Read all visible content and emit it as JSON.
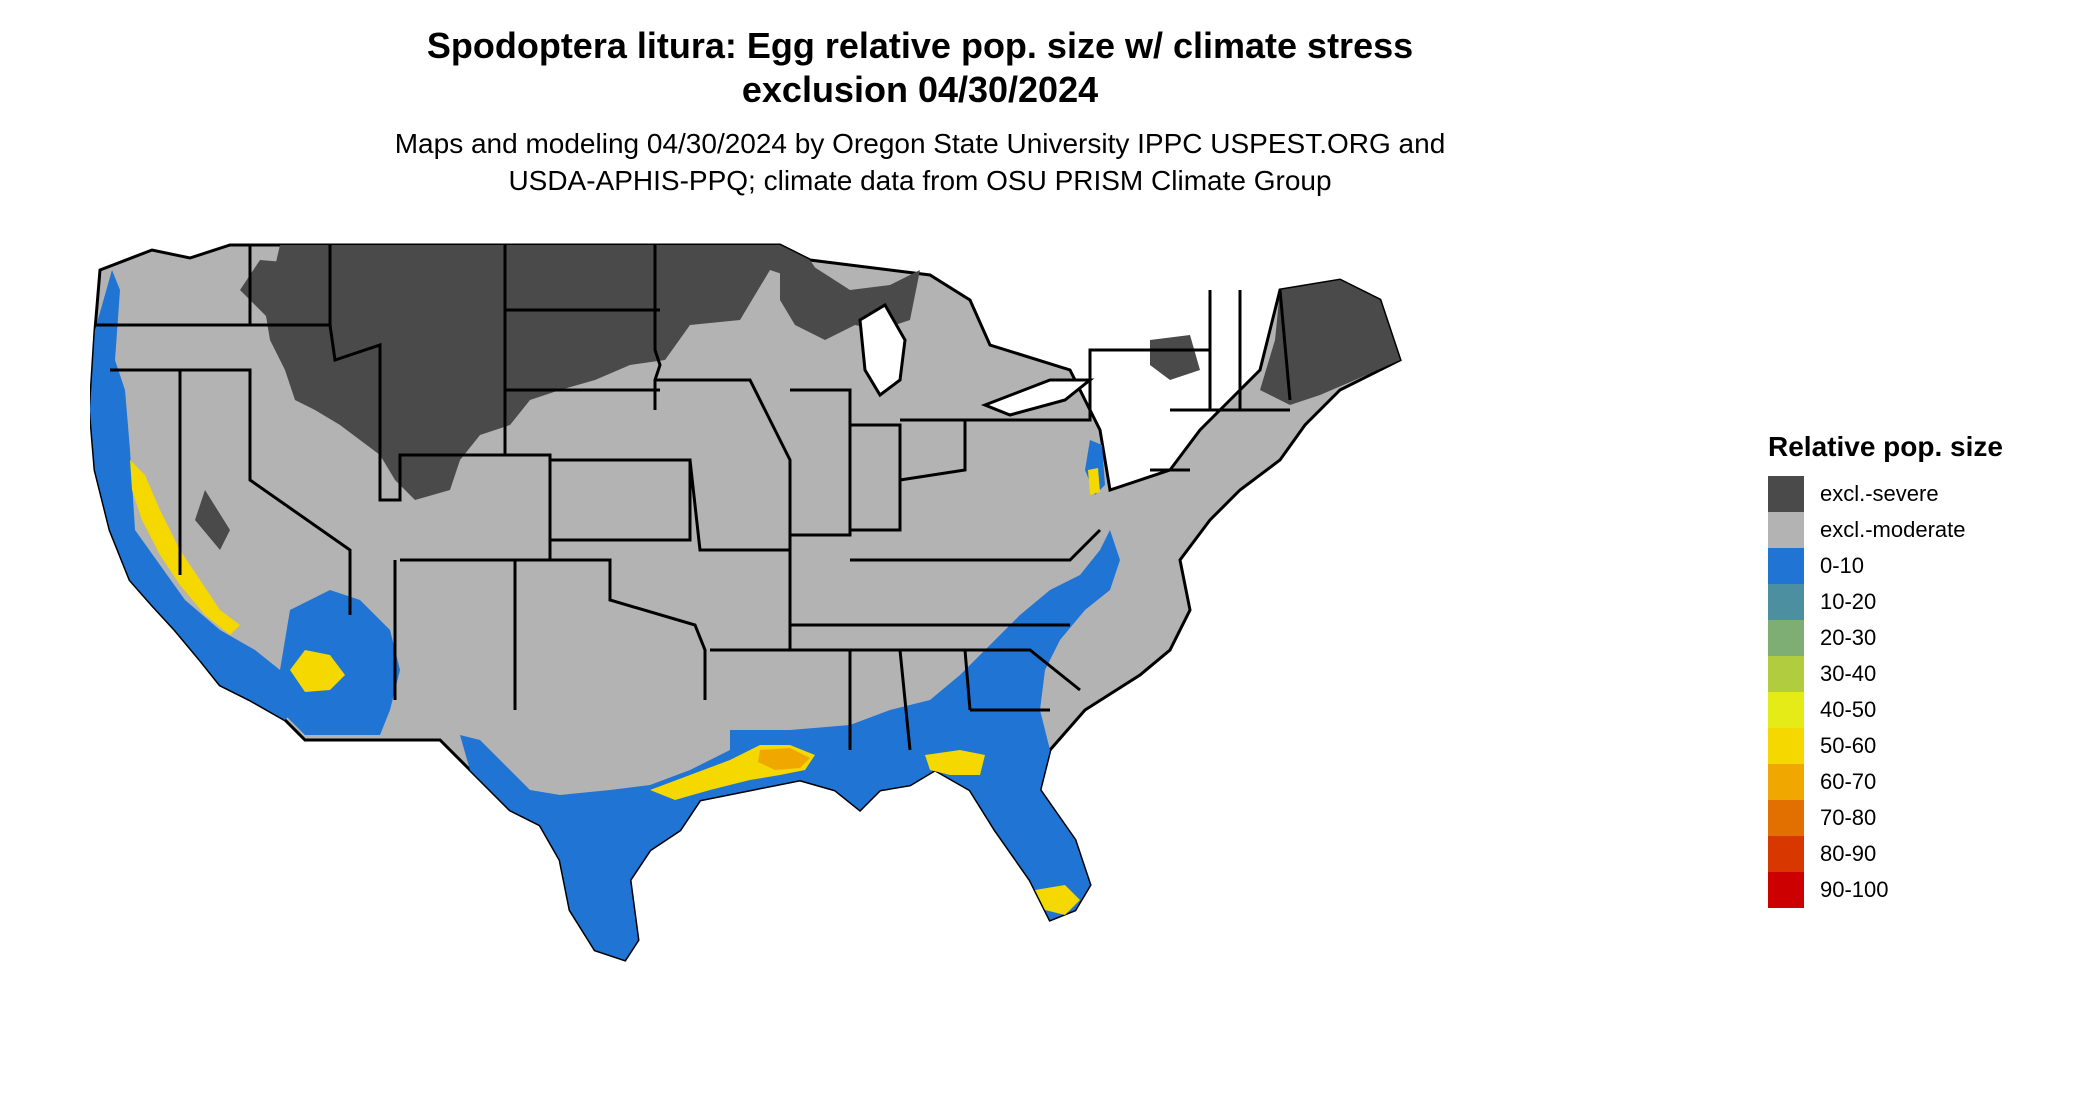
{
  "header": {
    "title_line1": "Spodoptera litura: Egg relative pop. size w/ climate stress",
    "title_line2": "exclusion 04/30/2024",
    "subtitle_line1": "Maps and modeling 04/30/2024 by Oregon State University IPPC USPEST.ORG and",
    "subtitle_line2": "USDA-APHIS-PPQ; climate data from OSU PRISM Climate Group"
  },
  "legend": {
    "title": "Relative pop. size",
    "items": [
      {
        "label": "excl.-severe",
        "color": "#4a4a4a"
      },
      {
        "label": "excl.-moderate",
        "color": "#b3b3b3"
      },
      {
        "label": "0-10",
        "color": "#1f74d4"
      },
      {
        "label": "10-20",
        "color": "#4b8fa0"
      },
      {
        "label": "20-30",
        "color": "#7fae74"
      },
      {
        "label": "30-40",
        "color": "#b2cc40"
      },
      {
        "label": "40-50",
        "color": "#e4eb17"
      },
      {
        "label": "50-60",
        "color": "#f5d800"
      },
      {
        "label": "60-70",
        "color": "#f0a800"
      },
      {
        "label": "70-80",
        "color": "#e27000"
      },
      {
        "label": "80-90",
        "color": "#d83800"
      },
      {
        "label": "90-100",
        "color": "#cc0000"
      }
    ]
  },
  "colors": {
    "state_border": "#000000",
    "background": "#ffffff"
  }
}
